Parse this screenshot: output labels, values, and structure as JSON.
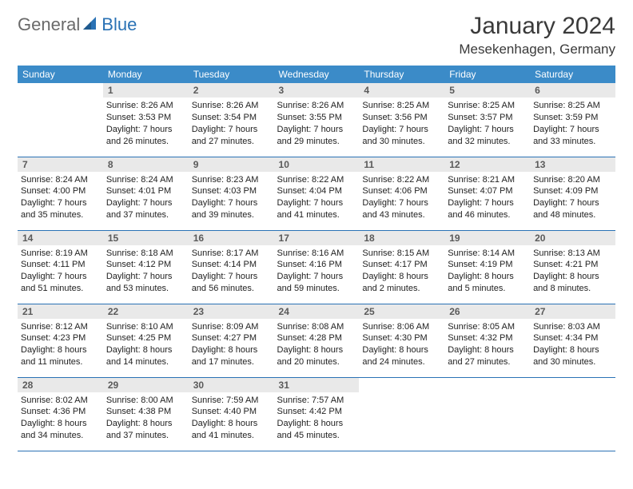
{
  "logo": {
    "text1": "General",
    "text2": "Blue",
    "icon_color": "#2a72b5"
  },
  "title": "January 2024",
  "location": "Mesekenhagen, Germany",
  "colors": {
    "header_bg": "#3b8bc8",
    "header_text": "#ffffff",
    "daynum_bg": "#e9e9e9",
    "daynum_text": "#5a5a5a",
    "rule": "#2a72b5",
    "body_text": "#222222"
  },
  "dow": [
    "Sunday",
    "Monday",
    "Tuesday",
    "Wednesday",
    "Thursday",
    "Friday",
    "Saturday"
  ],
  "weeks": [
    [
      null,
      {
        "n": "1",
        "sr": "8:26 AM",
        "ss": "3:53 PM",
        "dl": "7 hours and 26 minutes."
      },
      {
        "n": "2",
        "sr": "8:26 AM",
        "ss": "3:54 PM",
        "dl": "7 hours and 27 minutes."
      },
      {
        "n": "3",
        "sr": "8:26 AM",
        "ss": "3:55 PM",
        "dl": "7 hours and 29 minutes."
      },
      {
        "n": "4",
        "sr": "8:25 AM",
        "ss": "3:56 PM",
        "dl": "7 hours and 30 minutes."
      },
      {
        "n": "5",
        "sr": "8:25 AM",
        "ss": "3:57 PM",
        "dl": "7 hours and 32 minutes."
      },
      {
        "n": "6",
        "sr": "8:25 AM",
        "ss": "3:59 PM",
        "dl": "7 hours and 33 minutes."
      }
    ],
    [
      {
        "n": "7",
        "sr": "8:24 AM",
        "ss": "4:00 PM",
        "dl": "7 hours and 35 minutes."
      },
      {
        "n": "8",
        "sr": "8:24 AM",
        "ss": "4:01 PM",
        "dl": "7 hours and 37 minutes."
      },
      {
        "n": "9",
        "sr": "8:23 AM",
        "ss": "4:03 PM",
        "dl": "7 hours and 39 minutes."
      },
      {
        "n": "10",
        "sr": "8:22 AM",
        "ss": "4:04 PM",
        "dl": "7 hours and 41 minutes."
      },
      {
        "n": "11",
        "sr": "8:22 AM",
        "ss": "4:06 PM",
        "dl": "7 hours and 43 minutes."
      },
      {
        "n": "12",
        "sr": "8:21 AM",
        "ss": "4:07 PM",
        "dl": "7 hours and 46 minutes."
      },
      {
        "n": "13",
        "sr": "8:20 AM",
        "ss": "4:09 PM",
        "dl": "7 hours and 48 minutes."
      }
    ],
    [
      {
        "n": "14",
        "sr": "8:19 AM",
        "ss": "4:11 PM",
        "dl": "7 hours and 51 minutes."
      },
      {
        "n": "15",
        "sr": "8:18 AM",
        "ss": "4:12 PM",
        "dl": "7 hours and 53 minutes."
      },
      {
        "n": "16",
        "sr": "8:17 AM",
        "ss": "4:14 PM",
        "dl": "7 hours and 56 minutes."
      },
      {
        "n": "17",
        "sr": "8:16 AM",
        "ss": "4:16 PM",
        "dl": "7 hours and 59 minutes."
      },
      {
        "n": "18",
        "sr": "8:15 AM",
        "ss": "4:17 PM",
        "dl": "8 hours and 2 minutes."
      },
      {
        "n": "19",
        "sr": "8:14 AM",
        "ss": "4:19 PM",
        "dl": "8 hours and 5 minutes."
      },
      {
        "n": "20",
        "sr": "8:13 AM",
        "ss": "4:21 PM",
        "dl": "8 hours and 8 minutes."
      }
    ],
    [
      {
        "n": "21",
        "sr": "8:12 AM",
        "ss": "4:23 PM",
        "dl": "8 hours and 11 minutes."
      },
      {
        "n": "22",
        "sr": "8:10 AM",
        "ss": "4:25 PM",
        "dl": "8 hours and 14 minutes."
      },
      {
        "n": "23",
        "sr": "8:09 AM",
        "ss": "4:27 PM",
        "dl": "8 hours and 17 minutes."
      },
      {
        "n": "24",
        "sr": "8:08 AM",
        "ss": "4:28 PM",
        "dl": "8 hours and 20 minutes."
      },
      {
        "n": "25",
        "sr": "8:06 AM",
        "ss": "4:30 PM",
        "dl": "8 hours and 24 minutes."
      },
      {
        "n": "26",
        "sr": "8:05 AM",
        "ss": "4:32 PM",
        "dl": "8 hours and 27 minutes."
      },
      {
        "n": "27",
        "sr": "8:03 AM",
        "ss": "4:34 PM",
        "dl": "8 hours and 30 minutes."
      }
    ],
    [
      {
        "n": "28",
        "sr": "8:02 AM",
        "ss": "4:36 PM",
        "dl": "8 hours and 34 minutes."
      },
      {
        "n": "29",
        "sr": "8:00 AM",
        "ss": "4:38 PM",
        "dl": "8 hours and 37 minutes."
      },
      {
        "n": "30",
        "sr": "7:59 AM",
        "ss": "4:40 PM",
        "dl": "8 hours and 41 minutes."
      },
      {
        "n": "31",
        "sr": "7:57 AM",
        "ss": "4:42 PM",
        "dl": "8 hours and 45 minutes."
      },
      null,
      null,
      null
    ]
  ]
}
